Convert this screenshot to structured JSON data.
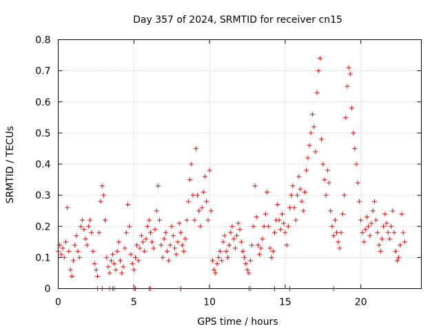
{
  "chart_data": {
    "type": "scatter",
    "title": "Day 357 of 2024, SRMTID for receiver cn15",
    "xlabel": "GPS time / hours",
    "ylabel": "SRMTID / TECUs",
    "xlim": [
      0,
      24
    ],
    "ylim": [
      0,
      0.8
    ],
    "xticks": [
      0,
      5,
      10,
      15,
      20
    ],
    "xtick_labels": [
      "0",
      "5",
      "10",
      "15",
      "20"
    ],
    "yticks": [
      0,
      0.1,
      0.2,
      0.3,
      0.4,
      0.5,
      0.6,
      0.7,
      0.8
    ],
    "ytick_labels": [
      "0",
      "0.1",
      "0.2",
      "0.3",
      "0.4",
      "0.5",
      "0.6",
      "0.7",
      "0.8"
    ],
    "grid": true,
    "marker": "+",
    "color": "#ff0000",
    "series": [
      {
        "name": "SRMTID",
        "points": [
          [
            0.0,
            0.12
          ],
          [
            0.1,
            0.14
          ],
          [
            0.2,
            0.11
          ],
          [
            0.3,
            0.13
          ],
          [
            0.4,
            0.1
          ],
          [
            0.5,
            0.15
          ],
          [
            0.6,
            0.26
          ],
          [
            0.7,
            0.12
          ],
          [
            0.8,
            0.06
          ],
          [
            0.9,
            0.04
          ],
          [
            1.0,
            0.09
          ],
          [
            1.1,
            0.14
          ],
          [
            1.2,
            0.17
          ],
          [
            1.3,
            0.12
          ],
          [
            1.4,
            0.1
          ],
          [
            1.5,
            0.2
          ],
          [
            1.6,
            0.22
          ],
          [
            1.7,
            0.19
          ],
          [
            1.8,
            0.16
          ],
          [
            1.9,
            0.14
          ],
          [
            2.0,
            0.2
          ],
          [
            2.1,
            0.22
          ],
          [
            2.2,
            0.18
          ],
          [
            2.3,
            0.12
          ],
          [
            2.4,
            0.08
          ],
          [
            2.5,
            0.06
          ],
          [
            2.6,
            0.04
          ],
          [
            2.7,
            0.18
          ],
          [
            2.8,
            0.28
          ],
          [
            2.9,
            0.33
          ],
          [
            3.0,
            0.3
          ],
          [
            3.1,
            0.22
          ],
          [
            3.2,
            0.1
          ],
          [
            3.3,
            0.07
          ],
          [
            3.4,
            0.05
          ],
          [
            3.5,
            0.09
          ],
          [
            3.6,
            0.11
          ],
          [
            3.7,
            0.08
          ],
          [
            3.8,
            0.06
          ],
          [
            3.9,
            0.12
          ],
          [
            4.0,
            0.15
          ],
          [
            4.1,
            0.09
          ],
          [
            4.2,
            0.05
          ],
          [
            4.3,
            0.07
          ],
          [
            4.4,
            0.13
          ],
          [
            4.5,
            0.18
          ],
          [
            4.6,
            0.27
          ],
          [
            4.7,
            0.2
          ],
          [
            4.8,
            0.11
          ],
          [
            4.9,
            0.08
          ],
          [
            5.0,
            0.06
          ],
          [
            5.1,
            0.1
          ],
          [
            5.2,
            0.14
          ],
          [
            5.3,
            0.09
          ],
          [
            5.4,
            0.13
          ],
          [
            5.5,
            0.17
          ],
          [
            5.6,
            0.15
          ],
          [
            5.7,
            0.12
          ],
          [
            5.8,
            0.16
          ],
          [
            5.9,
            0.2
          ],
          [
            6.0,
            0.22
          ],
          [
            6.1,
            0.18
          ],
          [
            6.2,
            0.15
          ],
          [
            6.3,
            0.13
          ],
          [
            6.4,
            0.19
          ],
          [
            6.5,
            0.25
          ],
          [
            6.6,
            0.33
          ],
          [
            6.7,
            0.22
          ],
          [
            6.8,
            0.14
          ],
          [
            6.9,
            0.1
          ],
          [
            7.0,
            0.16
          ],
          [
            7.1,
            0.18
          ],
          [
            7.2,
            0.12
          ],
          [
            7.3,
            0.09
          ],
          [
            7.4,
            0.14
          ],
          [
            7.5,
            0.2
          ],
          [
            7.6,
            0.17
          ],
          [
            7.7,
            0.13
          ],
          [
            7.8,
            0.11
          ],
          [
            7.9,
            0.15
          ],
          [
            8.0,
            0.21
          ],
          [
            8.1,
            0.18
          ],
          [
            8.2,
            0.14
          ],
          [
            8.3,
            0.12
          ],
          [
            8.4,
            0.16
          ],
          [
            8.5,
            0.22
          ],
          [
            8.6,
            0.28
          ],
          [
            8.7,
            0.35
          ],
          [
            8.8,
            0.4
          ],
          [
            8.9,
            0.3
          ],
          [
            9.0,
            0.22
          ],
          [
            9.1,
            0.45
          ],
          [
            9.2,
            0.3
          ],
          [
            9.3,
            0.25
          ],
          [
            9.4,
            0.2
          ],
          [
            9.5,
            0.26
          ],
          [
            9.6,
            0.31
          ],
          [
            9.7,
            0.36
          ],
          [
            9.8,
            0.28
          ],
          [
            9.9,
            0.22
          ],
          [
            10.0,
            0.38
          ],
          [
            10.1,
            0.25
          ],
          [
            10.2,
            0.09
          ],
          [
            10.3,
            0.06
          ],
          [
            10.4,
            0.05
          ],
          [
            10.5,
            0.08
          ],
          [
            10.6,
            0.1
          ],
          [
            10.7,
            0.12
          ],
          [
            10.8,
            0.09
          ],
          [
            10.9,
            0.15
          ],
          [
            11.0,
            0.17
          ],
          [
            11.1,
            0.12
          ],
          [
            11.2,
            0.1
          ],
          [
            11.3,
            0.14
          ],
          [
            11.4,
            0.18
          ],
          [
            11.5,
            0.2
          ],
          [
            11.6,
            0.16
          ],
          [
            11.7,
            0.13
          ],
          [
            11.8,
            0.17
          ],
          [
            11.9,
            0.21
          ],
          [
            12.0,
            0.19
          ],
          [
            12.1,
            0.15
          ],
          [
            12.2,
            0.12
          ],
          [
            12.3,
            0.1
          ],
          [
            12.4,
            0.08
          ],
          [
            12.5,
            0.06
          ],
          [
            12.6,
            0.05
          ],
          [
            12.7,
            0.09
          ],
          [
            12.8,
            0.14
          ],
          [
            12.9,
            0.2
          ],
          [
            13.0,
            0.33
          ],
          [
            13.1,
            0.23
          ],
          [
            13.2,
            0.14
          ],
          [
            13.3,
            0.11
          ],
          [
            13.4,
            0.13
          ],
          [
            13.5,
            0.16
          ],
          [
            13.6,
            0.2
          ],
          [
            13.7,
            0.24
          ],
          [
            13.8,
            0.31
          ],
          [
            13.9,
            0.2
          ],
          [
            14.0,
            0.13
          ],
          [
            14.1,
            0.1
          ],
          [
            14.2,
            0.12
          ],
          [
            14.3,
            0.18
          ],
          [
            14.4,
            0.22
          ],
          [
            14.5,
            0.27
          ],
          [
            14.6,
            0.22
          ],
          [
            14.7,
            0.19
          ],
          [
            14.8,
            0.24
          ],
          [
            14.9,
            0.21
          ],
          [
            15.0,
            0.18
          ],
          [
            15.1,
            0.14
          ],
          [
            15.2,
            0.2
          ],
          [
            15.3,
            0.26
          ],
          [
            15.4,
            0.3
          ],
          [
            15.5,
            0.33
          ],
          [
            15.6,
            0.26
          ],
          [
            15.7,
            0.22
          ],
          [
            15.8,
            0.3
          ],
          [
            15.9,
            0.36
          ],
          [
            16.0,
            0.32
          ],
          [
            16.1,
            0.28
          ],
          [
            16.2,
            0.25
          ],
          [
            16.3,
            0.31
          ],
          [
            16.4,
            0.38
          ],
          [
            16.5,
            0.42
          ],
          [
            16.6,
            0.46
          ],
          [
            16.7,
            0.5
          ],
          [
            16.8,
            0.56
          ],
          [
            16.9,
            0.52
          ],
          [
            17.0,
            0.44
          ],
          [
            17.1,
            0.63
          ],
          [
            17.2,
            0.7
          ],
          [
            17.3,
            0.74
          ],
          [
            17.4,
            0.48
          ],
          [
            17.5,
            0.4
          ],
          [
            17.6,
            0.35
          ],
          [
            17.7,
            0.3
          ],
          [
            17.8,
            0.38
          ],
          [
            17.9,
            0.34
          ],
          [
            18.0,
            0.25
          ],
          [
            18.1,
            0.2
          ],
          [
            18.2,
            0.17
          ],
          [
            18.3,
            0.22
          ],
          [
            18.4,
            0.18
          ],
          [
            18.5,
            0.15
          ],
          [
            18.6,
            0.13
          ],
          [
            18.7,
            0.18
          ],
          [
            18.8,
            0.24
          ],
          [
            18.9,
            0.3
          ],
          [
            19.0,
            0.55
          ],
          [
            19.1,
            0.65
          ],
          [
            19.2,
            0.71
          ],
          [
            19.3,
            0.69
          ],
          [
            19.4,
            0.58
          ],
          [
            19.5,
            0.5
          ],
          [
            19.6,
            0.45
          ],
          [
            19.7,
            0.4
          ],
          [
            19.8,
            0.34
          ],
          [
            19.9,
            0.28
          ],
          [
            20.0,
            0.22
          ],
          [
            20.1,
            0.18
          ],
          [
            20.2,
            0.15
          ],
          [
            20.3,
            0.19
          ],
          [
            20.4,
            0.23
          ],
          [
            20.5,
            0.2
          ],
          [
            20.6,
            0.17
          ],
          [
            20.7,
            0.21
          ],
          [
            20.8,
            0.25
          ],
          [
            20.9,
            0.28
          ],
          [
            21.0,
            0.22
          ],
          [
            21.1,
            0.18
          ],
          [
            21.2,
            0.14
          ],
          [
            21.3,
            0.12
          ],
          [
            21.4,
            0.16
          ],
          [
            21.5,
            0.2
          ],
          [
            21.6,
            0.24
          ],
          [
            21.7,
            0.21
          ],
          [
            21.8,
            0.18
          ],
          [
            21.9,
            0.16
          ],
          [
            22.0,
            0.2
          ],
          [
            22.1,
            0.25
          ],
          [
            22.2,
            0.18
          ],
          [
            22.3,
            0.12
          ],
          [
            22.4,
            0.09
          ],
          [
            22.5,
            0.1
          ],
          [
            22.6,
            0.14
          ],
          [
            22.7,
            0.24
          ],
          [
            22.8,
            0.18
          ],
          [
            22.9,
            0.15
          ]
        ]
      }
    ],
    "baseline_points": [
      2.6,
      2.9,
      3.4,
      3.6,
      3.7,
      5.0,
      5.1,
      6.0,
      6.1,
      8.1,
      12.6,
      12.7,
      14.3,
      15.3,
      18.2
    ]
  }
}
